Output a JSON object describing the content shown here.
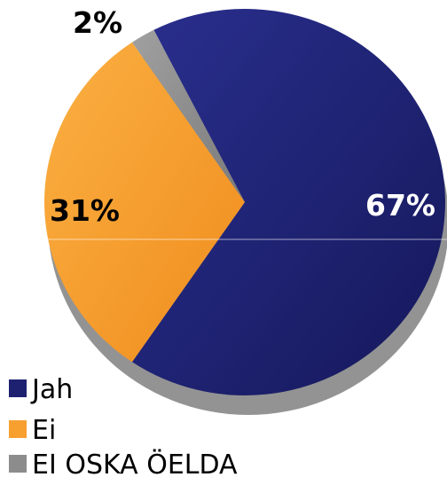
{
  "chart_data": {
    "type": "pie",
    "title": "",
    "categories": [
      "Jah",
      "Ei",
      "EI OSKA ÖELDA"
    ],
    "values": [
      67,
      31,
      2
    ],
    "labels": [
      "67%",
      "31%",
      "2%"
    ],
    "colors": [
      "#1e2170",
      "#f7a030",
      "#8c8c8c"
    ],
    "legend": "bottom-left"
  }
}
